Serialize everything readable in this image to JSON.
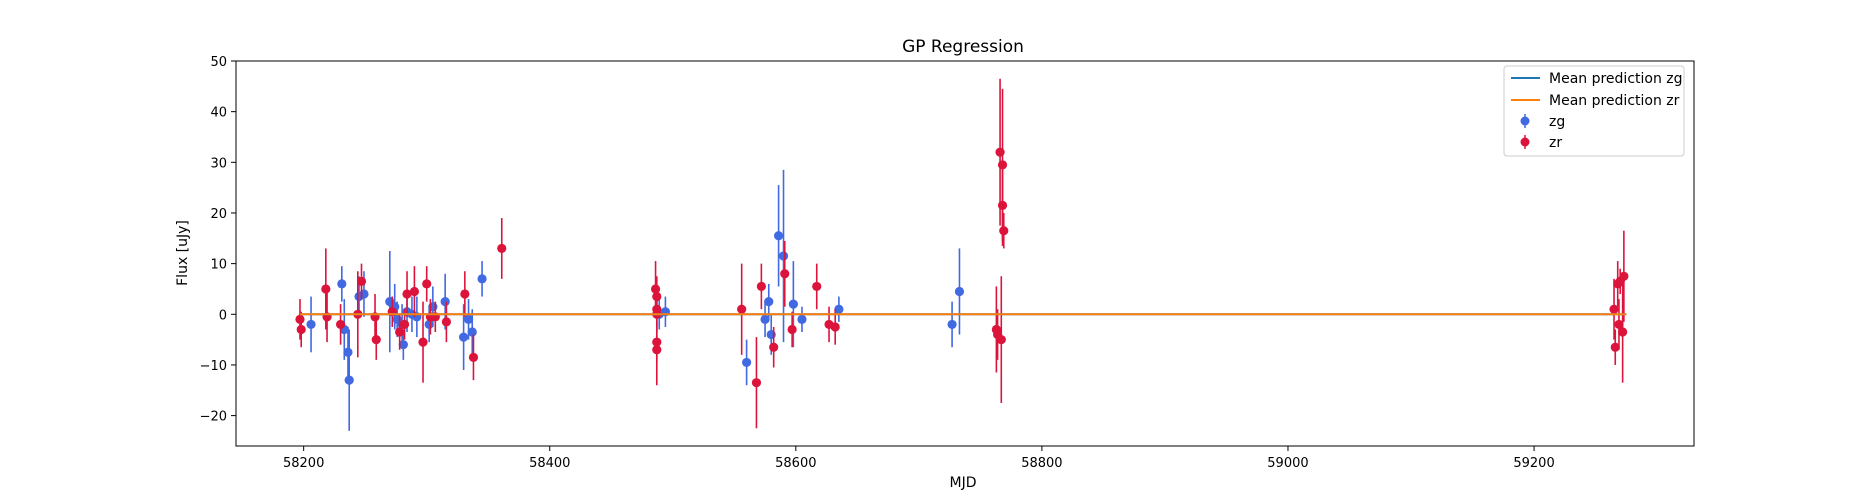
{
  "chart_data": {
    "type": "scatter",
    "title": "GP Regression",
    "xlabel": "MJD",
    "ylabel": "Flux [uJy]",
    "xlim": [
      58145,
      59330
    ],
    "ylim": [
      -26,
      50
    ],
    "xticks": [
      58200,
      58400,
      58600,
      58800,
      59000,
      59200
    ],
    "yticks": [
      -20,
      -10,
      0,
      10,
      20,
      30,
      40,
      50
    ],
    "grid": false,
    "legend_position": "top-right",
    "lines": [
      {
        "name": "Mean prediction zg",
        "color": "#1f77b4",
        "x": [
          58197,
          59275
        ],
        "y": [
          0,
          0
        ]
      },
      {
        "name": "Mean prediction zr",
        "color": "#ff7f0e",
        "x": [
          58197,
          59275
        ],
        "y": [
          0,
          0
        ]
      }
    ],
    "series": [
      {
        "name": "zg",
        "color": "#4169e1",
        "points": [
          {
            "x": 58206,
            "y": -2.0,
            "err": 5.5
          },
          {
            "x": 58231,
            "y": 6.0,
            "err": 3.5
          },
          {
            "x": 58233,
            "y": -3.0,
            "err": 6.0
          },
          {
            "x": 58236,
            "y": -7.5,
            "err": 5.0
          },
          {
            "x": 58237,
            "y": -13.0,
            "err": 10.0
          },
          {
            "x": 58245,
            "y": 3.5,
            "err": 4.0
          },
          {
            "x": 58249,
            "y": 4.0,
            "err": 4.5
          },
          {
            "x": 58270,
            "y": 2.5,
            "err": 10.0
          },
          {
            "x": 58274,
            "y": 1.5,
            "err": 4.5
          },
          {
            "x": 58276,
            "y": -1.0,
            "err": 3.5
          },
          {
            "x": 58280,
            "y": -2.0,
            "err": 4.0
          },
          {
            "x": 58281,
            "y": -6.0,
            "err": 3.0
          },
          {
            "x": 58284,
            "y": 0.5,
            "err": 4.0
          },
          {
            "x": 58288,
            "y": 0.0,
            "err": 3.5
          },
          {
            "x": 58292,
            "y": -0.5,
            "err": 4.0
          },
          {
            "x": 58302,
            "y": -2.0,
            "err": 3.5
          },
          {
            "x": 58305,
            "y": 1.5,
            "err": 4.0
          },
          {
            "x": 58315,
            "y": 2.5,
            "err": 5.5
          },
          {
            "x": 58330,
            "y": -4.5,
            "err": 6.5
          },
          {
            "x": 58334,
            "y": -1.0,
            "err": 4.0
          },
          {
            "x": 58337,
            "y": -3.5,
            "err": 4.5
          },
          {
            "x": 58345,
            "y": 7.0,
            "err": 3.5
          },
          {
            "x": 58489,
            "y": 0.0,
            "err": 3.0
          },
          {
            "x": 58494,
            "y": 0.5,
            "err": 3.0
          },
          {
            "x": 58560,
            "y": -9.5,
            "err": 4.5
          },
          {
            "x": 58575,
            "y": -1.0,
            "err": 3.5
          },
          {
            "x": 58578,
            "y": 2.5,
            "err": 3.5
          },
          {
            "x": 58580,
            "y": -4.0,
            "err": 4.0
          },
          {
            "x": 58586,
            "y": 15.5,
            "err": 10.0
          },
          {
            "x": 58590,
            "y": 11.5,
            "err": 17.0
          },
          {
            "x": 58598,
            "y": 2.0,
            "err": 8.5
          },
          {
            "x": 58605,
            "y": -1.0,
            "err": 2.5
          },
          {
            "x": 58635,
            "y": 1.0,
            "err": 2.5
          },
          {
            "x": 58727,
            "y": -2.0,
            "err": 4.5
          },
          {
            "x": 58733,
            "y": 4.5,
            "err": 8.5
          }
        ]
      },
      {
        "name": "zr",
        "color": "#dc143c",
        "points": [
          {
            "x": 58197,
            "y": -1.0,
            "err": 4.0
          },
          {
            "x": 58198,
            "y": -3.0,
            "err": 3.5
          },
          {
            "x": 58218,
            "y": 5.0,
            "err": 8.0
          },
          {
            "x": 58219,
            "y": -0.5,
            "err": 5.0
          },
          {
            "x": 58230,
            "y": -2.0,
            "err": 4.0
          },
          {
            "x": 58244,
            "y": 0.0,
            "err": 8.5
          },
          {
            "x": 58247,
            "y": 6.5,
            "err": 3.5
          },
          {
            "x": 58258,
            "y": -0.5,
            "err": 4.5
          },
          {
            "x": 58259,
            "y": -5.0,
            "err": 4.0
          },
          {
            "x": 58272,
            "y": 0.5,
            "err": 3.0
          },
          {
            "x": 58278,
            "y": -3.5,
            "err": 3.5
          },
          {
            "x": 58282,
            "y": -2.0,
            "err": 3.0
          },
          {
            "x": 58284,
            "y": 4.0,
            "err": 4.5
          },
          {
            "x": 58290,
            "y": 4.5,
            "err": 5.0
          },
          {
            "x": 58297,
            "y": -5.5,
            "err": 8.0
          },
          {
            "x": 58300,
            "y": 6.0,
            "err": 3.5
          },
          {
            "x": 58303,
            "y": -0.5,
            "err": 3.5
          },
          {
            "x": 58307,
            "y": -0.5,
            "err": 3.0
          },
          {
            "x": 58316,
            "y": -1.5,
            "err": 4.0
          },
          {
            "x": 58331,
            "y": 4.0,
            "err": 4.5
          },
          {
            "x": 58338,
            "y": -8.5,
            "err": 4.5
          },
          {
            "x": 58361,
            "y": 13.0,
            "err": 6.0
          },
          {
            "x": 58486,
            "y": 5.0,
            "err": 5.5
          },
          {
            "x": 58487,
            "y": 3.5,
            "err": 4.0
          },
          {
            "x": 58487,
            "y": 1.0,
            "err": 3.5
          },
          {
            "x": 58487,
            "y": 0.0,
            "err": 3.5
          },
          {
            "x": 58487,
            "y": -5.5,
            "err": 4.0
          },
          {
            "x": 58487,
            "y": -7.0,
            "err": 7.0
          },
          {
            "x": 58556,
            "y": 1.0,
            "err": 9.0
          },
          {
            "x": 58568,
            "y": -13.5,
            "err": 9.0
          },
          {
            "x": 58572,
            "y": 5.5,
            "err": 4.5
          },
          {
            "x": 58582,
            "y": -6.5,
            "err": 4.0
          },
          {
            "x": 58591,
            "y": 8.0,
            "err": 6.5
          },
          {
            "x": 58597,
            "y": -3.0,
            "err": 3.5
          },
          {
            "x": 58617,
            "y": 5.5,
            "err": 4.5
          },
          {
            "x": 58627,
            "y": -2.0,
            "err": 3.5
          },
          {
            "x": 58632,
            "y": -2.5,
            "err": 3.5
          },
          {
            "x": 58763,
            "y": -3.0,
            "err": 8.5
          },
          {
            "x": 58764,
            "y": -4.0,
            "err": 5.0
          },
          {
            "x": 58766,
            "y": 32.0,
            "err": 14.5
          },
          {
            "x": 58767,
            "y": -5.0,
            "err": 12.5
          },
          {
            "x": 58768,
            "y": 29.5,
            "err": 15.0
          },
          {
            "x": 58768,
            "y": 21.5,
            "err": 8.0
          },
          {
            "x": 58769,
            "y": 16.5,
            "err": 3.5
          },
          {
            "x": 59265,
            "y": 1.0,
            "err": 6.0
          },
          {
            "x": 59266,
            "y": -6.5,
            "err": 3.5
          },
          {
            "x": 59268,
            "y": 6.0,
            "err": 4.5
          },
          {
            "x": 59269,
            "y": -2.0,
            "err": 5.0
          },
          {
            "x": 59270,
            "y": 6.5,
            "err": 2.5
          },
          {
            "x": 59272,
            "y": -3.5,
            "err": 10.0
          },
          {
            "x": 59273,
            "y": 7.5,
            "err": 9.0
          }
        ]
      }
    ]
  }
}
